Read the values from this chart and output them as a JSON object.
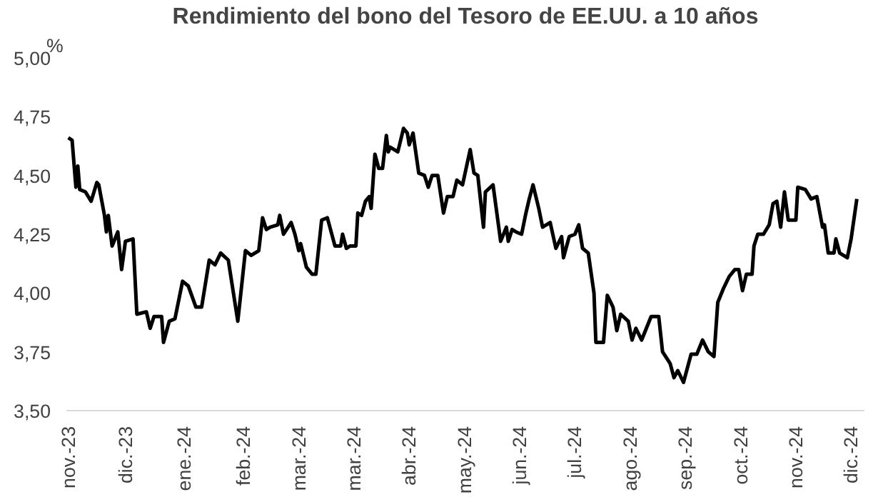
{
  "chart_data": {
    "type": "line",
    "title": "Rendimiento del bono del Tesoro de EE.UU. a 10 años",
    "ylabel": "%",
    "x": [
      "2023-11-01",
      "2023-11-03",
      "2023-11-05",
      "2023-11-06",
      "2023-11-07",
      "2023-11-10",
      "2023-11-13",
      "2023-11-16",
      "2023-11-17",
      "2023-11-20",
      "2023-11-21",
      "2023-11-22",
      "2023-11-24",
      "2023-11-27",
      "2023-11-29",
      "2023-12-01",
      "2023-12-05",
      "2023-12-07",
      "2023-12-12",
      "2023-12-14",
      "2023-12-16",
      "2023-12-20",
      "2023-12-21",
      "2023-12-24",
      "2023-12-27",
      "2023-12-31",
      "2024-01-03",
      "2024-01-07",
      "2024-01-10",
      "2024-01-14",
      "2024-01-17",
      "2024-01-20",
      "2024-01-24",
      "2024-01-29",
      "2024-01-31",
      "2024-02-02",
      "2024-02-05",
      "2024-02-09",
      "2024-02-11",
      "2024-02-13",
      "2024-02-15",
      "2024-02-19",
      "2024-02-20",
      "2024-02-22",
      "2024-02-26",
      "2024-02-28",
      "2024-03-01",
      "2024-03-02",
      "2024-03-05",
      "2024-03-08",
      "2024-03-10",
      "2024-03-13",
      "2024-03-16",
      "2024-03-20",
      "2024-03-23",
      "2024-03-24",
      "2024-03-26",
      "2024-03-28",
      "2024-03-31",
      "2024-04-01",
      "2024-04-03",
      "2024-04-05",
      "2024-04-07",
      "2024-04-08",
      "2024-04-10",
      "2024-04-12",
      "2024-04-14",
      "2024-04-16",
      "2024-04-17",
      "2024-04-18",
      "2024-04-22",
      "2024-04-25",
      "2024-04-27",
      "2024-04-28",
      "2024-04-30",
      "2024-05-03",
      "2024-05-06",
      "2024-05-08",
      "2024-05-10",
      "2024-05-13",
      "2024-05-16",
      "2024-05-18",
      "2024-05-21",
      "2024-05-23",
      "2024-05-26",
      "2024-05-30",
      "2024-06-01",
      "2024-06-03",
      "2024-06-06",
      "2024-06-07",
      "2024-06-11",
      "2024-06-15",
      "2024-06-18",
      "2024-06-19",
      "2024-06-21",
      "2024-06-23",
      "2024-06-26",
      "2024-06-28",
      "2024-06-30",
      "2024-07-02",
      "2024-07-05",
      "2024-07-07",
      "2024-07-11",
      "2024-07-14",
      "2024-07-17",
      "2024-07-18",
      "2024-07-21",
      "2024-07-24",
      "2024-07-26",
      "2024-07-28",
      "2024-07-31",
      "2024-08-03",
      "2024-08-04",
      "2024-08-08",
      "2024-08-10",
      "2024-08-13",
      "2024-08-15",
      "2024-08-17",
      "2024-08-21",
      "2024-08-23",
      "2024-08-25",
      "2024-08-28",
      "2024-09-02",
      "2024-09-06",
      "2024-09-08",
      "2024-09-12",
      "2024-09-14",
      "2024-09-16",
      "2024-09-19",
      "2024-09-23",
      "2024-09-26",
      "2024-09-29",
      "2024-10-02",
      "2024-10-05",
      "2024-10-07",
      "2024-10-10",
      "2024-10-13",
      "2024-10-16",
      "2024-10-18",
      "2024-10-20",
      "2024-10-22",
      "2024-10-25",
      "2024-10-26",
      "2024-10-28",
      "2024-10-31",
      "2024-11-03",
      "2024-11-05",
      "2024-11-07",
      "2024-11-09",
      "2024-11-11",
      "2024-11-13",
      "2024-11-17",
      "2024-11-18",
      "2024-11-22",
      "2024-11-25",
      "2024-11-28",
      "2024-12-01",
      "2024-12-02",
      "2024-12-04",
      "2024-12-07",
      "2024-12-08",
      "2024-12-10",
      "2024-12-14",
      "2024-12-16",
      "2024-12-19"
    ],
    "series": [
      {
        "color": "#000000",
        "values": [
          4.66,
          4.65,
          4.45,
          4.54,
          4.44,
          4.43,
          4.39,
          4.47,
          4.46,
          4.33,
          4.26,
          4.33,
          4.2,
          4.26,
          4.1,
          4.22,
          4.23,
          3.91,
          3.92,
          3.85,
          3.9,
          3.9,
          3.79,
          3.88,
          3.89,
          4.05,
          4.03,
          3.94,
          3.94,
          4.14,
          4.12,
          4.17,
          4.14,
          3.88,
          4.03,
          4.18,
          4.16,
          4.18,
          4.32,
          4.27,
          4.28,
          4.29,
          4.33,
          4.25,
          4.3,
          4.25,
          4.18,
          4.21,
          4.11,
          4.08,
          4.08,
          4.31,
          4.32,
          4.2,
          4.2,
          4.25,
          4.19,
          4.2,
          4.2,
          4.34,
          4.33,
          4.39,
          4.41,
          4.36,
          4.59,
          4.53,
          4.53,
          4.67,
          4.6,
          4.62,
          4.6,
          4.7,
          4.68,
          4.63,
          4.68,
          4.51,
          4.5,
          4.45,
          4.5,
          4.5,
          4.34,
          4.41,
          4.41,
          4.48,
          4.46,
          4.61,
          4.51,
          4.5,
          4.28,
          4.43,
          4.46,
          4.22,
          4.28,
          4.22,
          4.27,
          4.26,
          4.25,
          4.33,
          4.4,
          4.46,
          4.36,
          4.28,
          4.3,
          4.19,
          4.24,
          4.15,
          4.24,
          4.25,
          4.29,
          4.19,
          4.17,
          4.0,
          3.79,
          3.79,
          3.99,
          3.94,
          3.84,
          3.91,
          3.88,
          3.8,
          3.85,
          3.8,
          3.9,
          3.9,
          3.75,
          3.7,
          3.64,
          3.67,
          3.62,
          3.74,
          3.74,
          3.8,
          3.75,
          3.73,
          3.96,
          4.02,
          4.07,
          4.1,
          4.1,
          4.01,
          4.08,
          4.08,
          4.2,
          4.25,
          4.25,
          4.29,
          4.38,
          4.39,
          4.28,
          4.43,
          4.31,
          4.31,
          4.45,
          4.44,
          4.4,
          4.41,
          4.28,
          4.29,
          4.17,
          4.17,
          4.23,
          4.17,
          4.15,
          4.23,
          4.4
        ]
      }
    ],
    "xlim": [
      "2023-10-31",
      "2024-12-23"
    ],
    "xticks": [
      {
        "value": "2023-11-01",
        "label": "nov.-23"
      },
      {
        "value": "2023-12-01",
        "label": "dic.-23"
      },
      {
        "value": "2024-01-01",
        "label": "ene.-24"
      },
      {
        "value": "2024-02-01",
        "label": "feb.-24"
      },
      {
        "value": "2024-03-01",
        "label": "mar.-24"
      },
      {
        "value": "2024-03-30",
        "label": "mar.-24"
      },
      {
        "value": "2024-04-28",
        "label": "abr.-24"
      },
      {
        "value": "2024-05-27",
        "label": "may.-24"
      },
      {
        "value": "2024-06-25",
        "label": "jun.-24"
      },
      {
        "value": "2024-07-24",
        "label": "jul.-24"
      },
      {
        "value": "2024-08-22",
        "label": "ago.-24"
      },
      {
        "value": "2024-09-20",
        "label": "sep.-24"
      },
      {
        "value": "2024-10-19",
        "label": "oct.-24"
      },
      {
        "value": "2024-11-17",
        "label": "nov.-24"
      },
      {
        "value": "2024-12-16",
        "label": "dic.-24"
      }
    ],
    "ylim": [
      3.5,
      5.0
    ],
    "yticks": [
      {
        "value": 3.5,
        "label": "3,50"
      },
      {
        "value": 3.75,
        "label": "3,75"
      },
      {
        "value": 4.0,
        "label": "4,00"
      },
      {
        "value": 4.25,
        "label": "4,25"
      },
      {
        "value": 4.5,
        "label": "4,50"
      },
      {
        "value": 4.75,
        "label": "4,75"
      },
      {
        "value": 5.0,
        "label": "5,00"
      }
    ],
    "grid": false,
    "line_style": "solid"
  }
}
